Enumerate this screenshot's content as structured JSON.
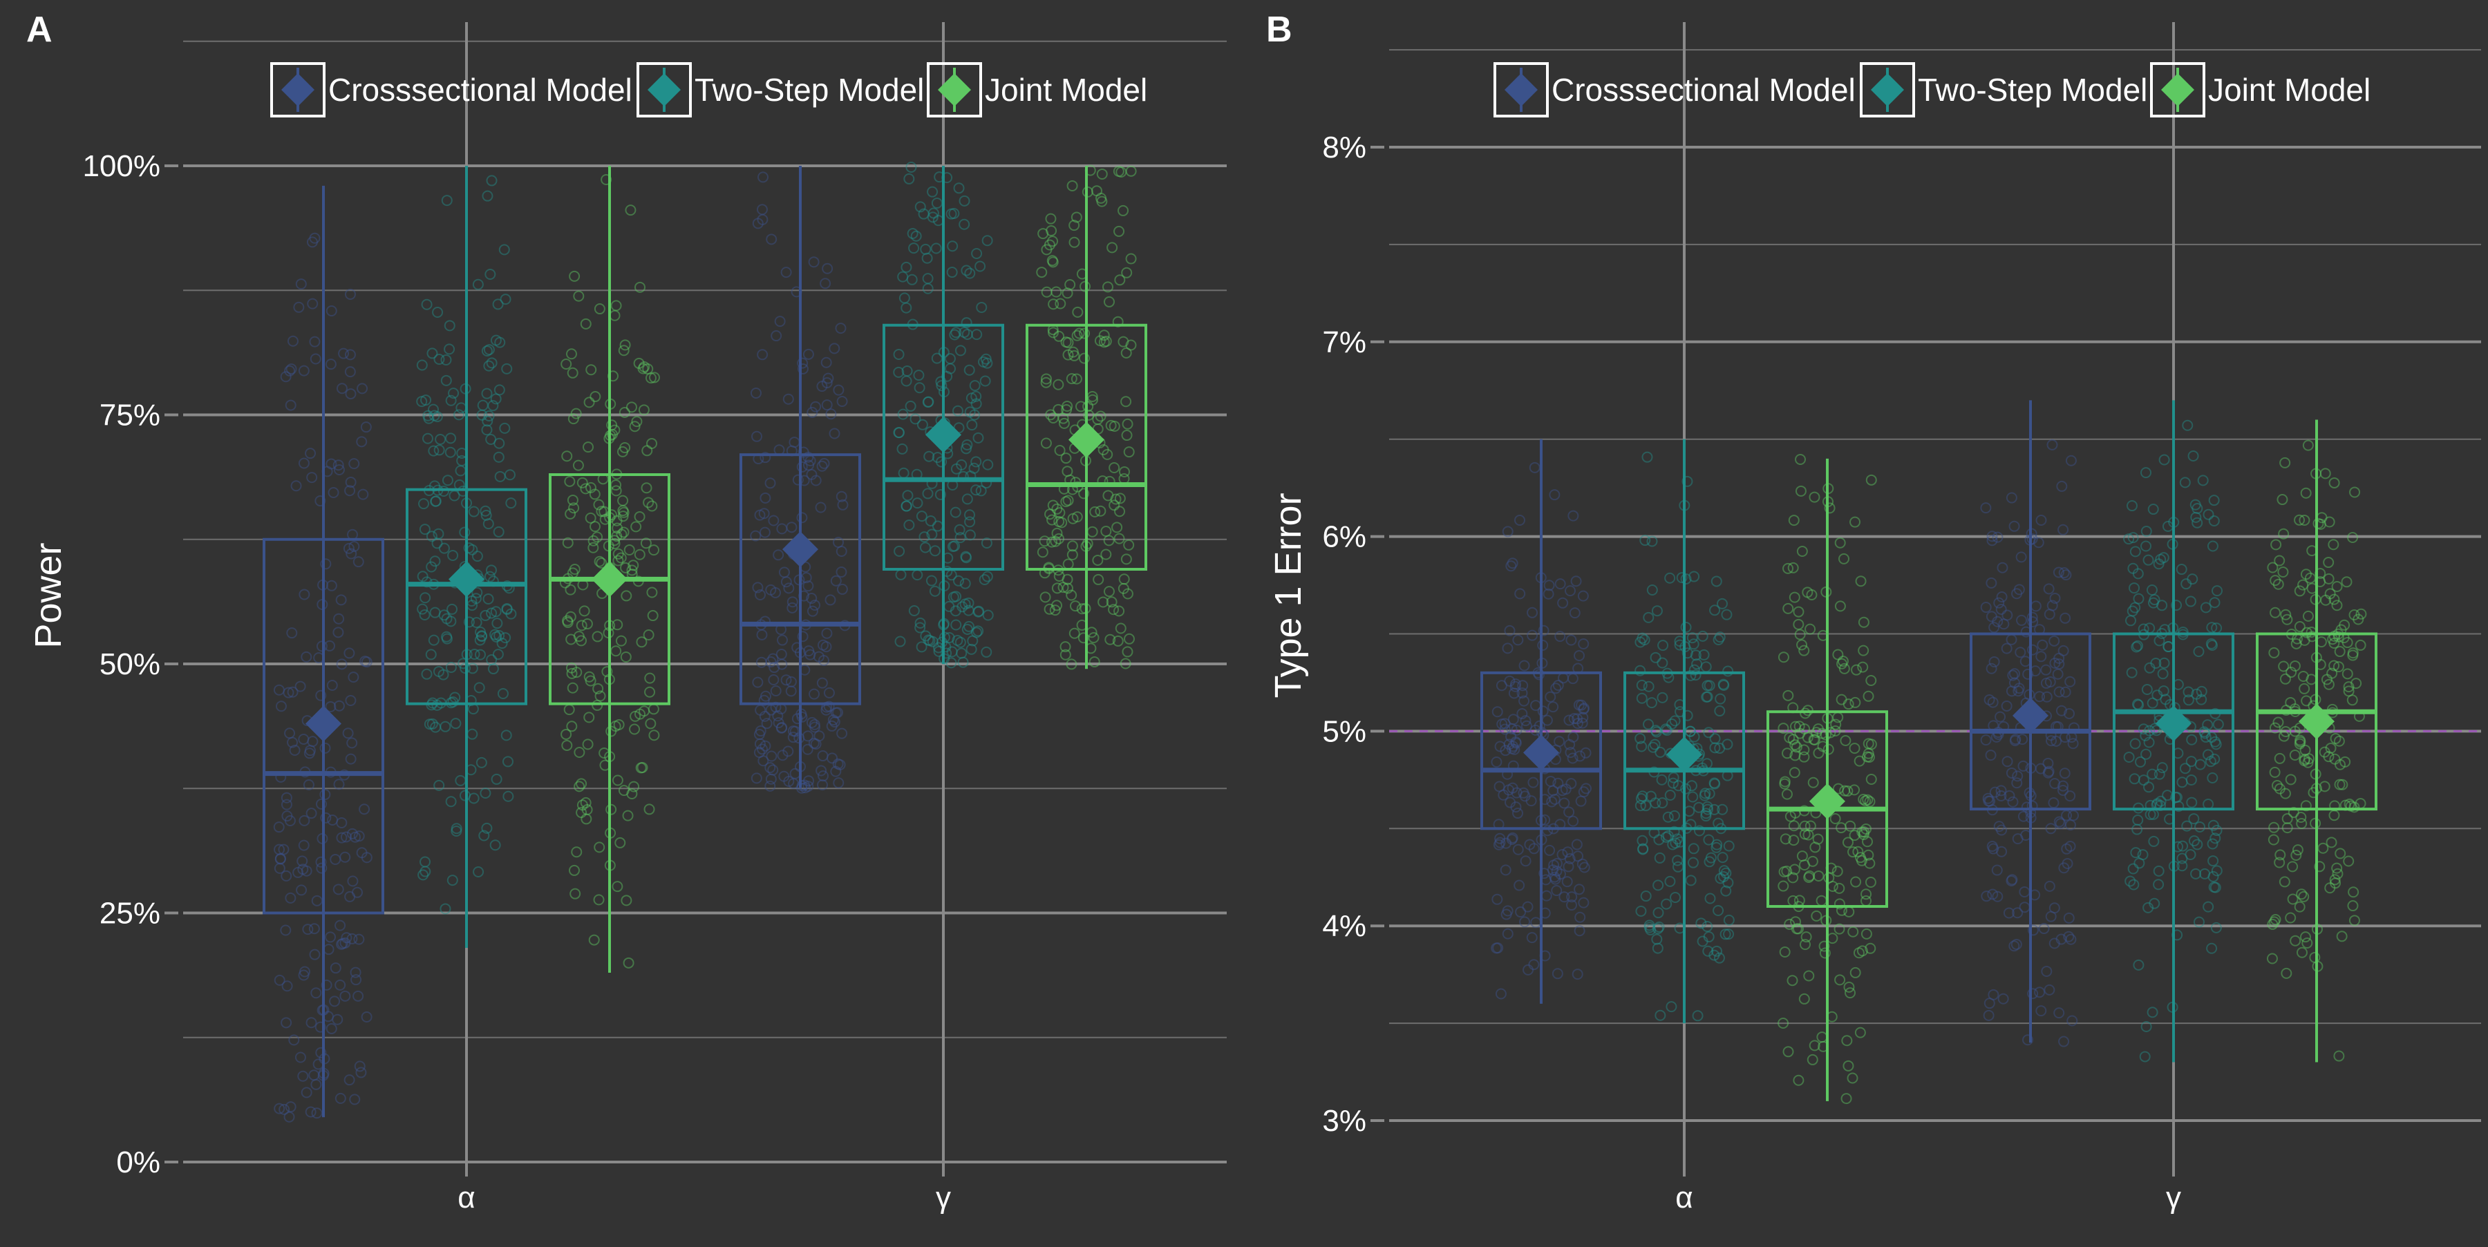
{
  "figure": {
    "background": "#333333",
    "grid_color": "#8a8a8a",
    "text_color": "#ffffff",
    "legend": {
      "entries": [
        {
          "label": "Crosssectional Model",
          "color": "#3b528b"
        },
        {
          "label": "Two-Step Model",
          "color": "#21908c"
        },
        {
          "label": "Joint Model",
          "color": "#5ec962"
        }
      ]
    }
  },
  "chart_data": [
    {
      "panel_label": "A",
      "type": "box",
      "title": "",
      "xlabel": "",
      "ylabel": "Power",
      "categories": [
        "α",
        "γ"
      ],
      "ylim": [
        0,
        1.0
      ],
      "yticks": [
        0,
        0.25,
        0.5,
        0.75,
        1.0
      ],
      "ytick_labels": [
        "0%",
        "25%",
        "50%",
        "75%",
        "100%"
      ],
      "grid": true,
      "series": [
        {
          "name": "Crosssectional Model",
          "color": "#3b528b",
          "stats": [
            {
              "category": "α",
              "whisker_low": 0.045,
              "q1": 0.25,
              "median": 0.39,
              "q3": 0.625,
              "whisker_high": 0.98,
              "mean": 0.44
            },
            {
              "category": "γ",
              "whisker_low": 0.375,
              "q1": 0.46,
              "median": 0.54,
              "q3": 0.71,
              "whisker_high": 1.0,
              "mean": 0.615
            }
          ]
        },
        {
          "name": "Two-Step Model",
          "color": "#21908c",
          "stats": [
            {
              "category": "α",
              "whisker_low": 0.215,
              "q1": 0.46,
              "median": 0.58,
              "q3": 0.675,
              "whisker_high": 1.0,
              "mean": 0.585
            },
            {
              "category": "γ",
              "whisker_low": 0.5,
              "q1": 0.595,
              "median": 0.685,
              "q3": 0.84,
              "whisker_high": 1.0,
              "mean": 0.73
            }
          ]
        },
        {
          "name": "Joint Model",
          "color": "#5ec962",
          "stats": [
            {
              "category": "α",
              "whisker_low": 0.19,
              "q1": 0.46,
              "median": 0.585,
              "q3": 0.69,
              "whisker_high": 1.0,
              "mean": 0.585
            },
            {
              "category": "γ",
              "whisker_low": 0.495,
              "q1": 0.595,
              "median": 0.68,
              "q3": 0.84,
              "whisker_high": 1.0,
              "mean": 0.725
            }
          ]
        }
      ]
    },
    {
      "panel_label": "B",
      "type": "box",
      "title": "",
      "xlabel": "",
      "ylabel": "Type 1 Error",
      "categories": [
        "α",
        "γ"
      ],
      "ylim": [
        0.03,
        0.08
      ],
      "yticks": [
        0.03,
        0.04,
        0.05,
        0.06,
        0.07,
        0.08
      ],
      "ytick_labels": [
        "3%",
        "4%",
        "5%",
        "6%",
        "7%",
        "8%"
      ],
      "reference_line": {
        "y": 0.05,
        "style": "dashed",
        "color": "#9b59b6"
      },
      "grid": true,
      "series": [
        {
          "name": "Crosssectional Model",
          "color": "#3b528b",
          "stats": [
            {
              "category": "α",
              "whisker_low": 0.036,
              "q1": 0.045,
              "median": 0.048,
              "q3": 0.053,
              "whisker_high": 0.065,
              "mean": 0.0489
            },
            {
              "category": "γ",
              "whisker_low": 0.034,
              "q1": 0.046,
              "median": 0.05,
              "q3": 0.055,
              "whisker_high": 0.067,
              "mean": 0.0508
            }
          ]
        },
        {
          "name": "Two-Step Model",
          "color": "#21908c",
          "stats": [
            {
              "category": "α",
              "whisker_low": 0.035,
              "q1": 0.045,
              "median": 0.048,
              "q3": 0.053,
              "whisker_high": 0.065,
              "mean": 0.0488
            },
            {
              "category": "γ",
              "whisker_low": 0.033,
              "q1": 0.046,
              "median": 0.051,
              "q3": 0.055,
              "whisker_high": 0.067,
              "mean": 0.0504
            }
          ]
        },
        {
          "name": "Joint Model",
          "color": "#5ec962",
          "stats": [
            {
              "category": "α",
              "whisker_low": 0.031,
              "q1": 0.041,
              "median": 0.046,
              "q3": 0.051,
              "whisker_high": 0.064,
              "mean": 0.0464
            },
            {
              "category": "γ",
              "whisker_low": 0.033,
              "q1": 0.046,
              "median": 0.051,
              "q3": 0.055,
              "whisker_high": 0.066,
              "mean": 0.0505
            }
          ]
        }
      ]
    }
  ]
}
